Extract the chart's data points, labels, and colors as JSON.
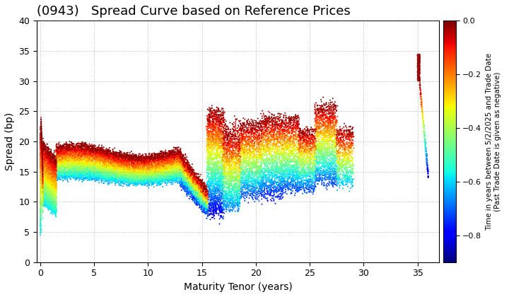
{
  "title": "(0943)   Spread Curve based on Reference Prices",
  "xlabel": "Maturity Tenor (years)",
  "ylabel": "Spread (bp)",
  "colorbar_label": "Time in years between 5/2/2025 and Trade Date\n(Past Trade Date is given as negative)",
  "xlim": [
    -0.3,
    37
  ],
  "ylim": [
    0,
    40
  ],
  "xticks": [
    0,
    5,
    10,
    15,
    20,
    25,
    30,
    35
  ],
  "yticks": [
    0,
    5,
    10,
    15,
    20,
    25,
    30,
    35,
    40
  ],
  "colorbar_ticks": [
    0.0,
    -0.2,
    -0.4,
    -0.6,
    -0.8
  ],
  "vmin": -0.9,
  "vmax": 0.0,
  "point_size": 2,
  "alpha": 1.0,
  "background_color": "#ffffff",
  "grid_color": "#888888",
  "title_fontsize": 13,
  "axis_fontsize": 10,
  "colorbar_fontsize": 7.5
}
